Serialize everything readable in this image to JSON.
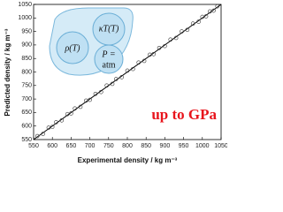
{
  "chart_data": {
    "type": "scatter",
    "xlabel": "Experimental density / kg m⁻³",
    "ylabel": "Predicted density / kg m⁻³",
    "xlim": [
      550,
      1050
    ],
    "ylim": [
      550,
      1050
    ],
    "xticks": [
      550,
      600,
      650,
      700,
      750,
      800,
      850,
      900,
      950,
      1000,
      1050
    ],
    "yticks": [
      550,
      600,
      650,
      700,
      750,
      800,
      850,
      900,
      950,
      1000,
      1050
    ],
    "color": "#333333",
    "line_color": "#000000",
    "reference_line": {
      "x": [
        550,
        1050
      ],
      "y": [
        550,
        1050
      ]
    },
    "x": [
      560,
      575,
      590,
      600,
      610,
      625,
      640,
      650,
      660,
      675,
      690,
      700,
      715,
      730,
      745,
      760,
      770,
      785,
      800,
      815,
      830,
      845,
      860,
      870,
      885,
      900,
      915,
      930,
      945,
      960,
      975,
      990,
      1000,
      1010,
      1020,
      1030,
      1040
    ],
    "values": [
      563,
      571,
      594,
      597,
      614,
      621,
      644,
      647,
      665,
      671,
      694,
      697,
      719,
      726,
      750,
      756,
      774,
      781,
      805,
      811,
      835,
      841,
      864,
      866,
      889,
      896,
      920,
      926,
      950,
      956,
      979,
      986,
      1004,
      1006,
      1024,
      1027,
      1043
    ],
    "annotations": [
      "ρ(T)",
      "κT(T)",
      "P =",
      "atm",
      "up to GPa"
    ],
    "annotation_color": "#e8141c"
  }
}
